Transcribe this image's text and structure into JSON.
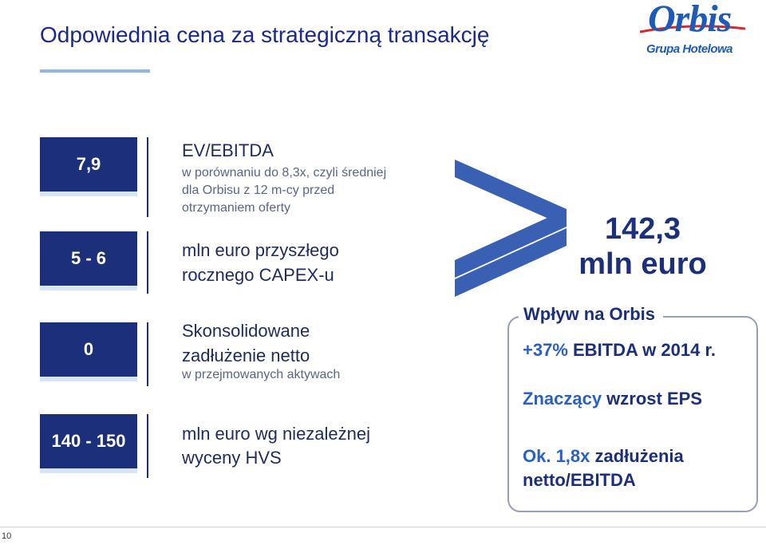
{
  "header": {
    "title": "Odpowiednia cena za strategiczną transakcję",
    "logo_word": "Orbis",
    "logo_sub": "Grupa Hotelowa"
  },
  "metrics": [
    {
      "value": "7,9",
      "label": "EV/EBITDA",
      "note": "w porównaniu do 8,3x, czyli średniej dla Orbisu z 12 m-cy przed otrzymaniem oferty"
    },
    {
      "value": "5 - 6",
      "label_line1": "mln euro przyszłego",
      "label_line2": "rocznego CAPEX-u"
    },
    {
      "value": "0",
      "label_line1": "Skonsolidowane",
      "label_line2": "zadłużenie netto",
      "note": "w przejmowanych aktywach"
    },
    {
      "value": "140 - 150",
      "label_line1": "mln euro wg niezależnej",
      "label_line2": "wyceny HVS"
    }
  ],
  "comparison": {
    "value_line1": "142,3",
    "value_line2": "mln euro"
  },
  "impact": {
    "title": "Wpływ na Orbis",
    "line1_a": "+37%",
    "line1_b": " EBITDA w 2014 r.",
    "line2_a": "Znaczący",
    "line2_b": " wzrost EPS",
    "line3_a": "Ok. 1,8x",
    "line3_b": " zadłużenia",
    "line4_a": "netto",
    "line4_b": "/EBITDA"
  },
  "footer": {
    "page_number": "10"
  },
  "colors": {
    "navy": "#1c2f7a",
    "accent_blue": "#2a60c4",
    "underline": "#8fb8e4"
  }
}
